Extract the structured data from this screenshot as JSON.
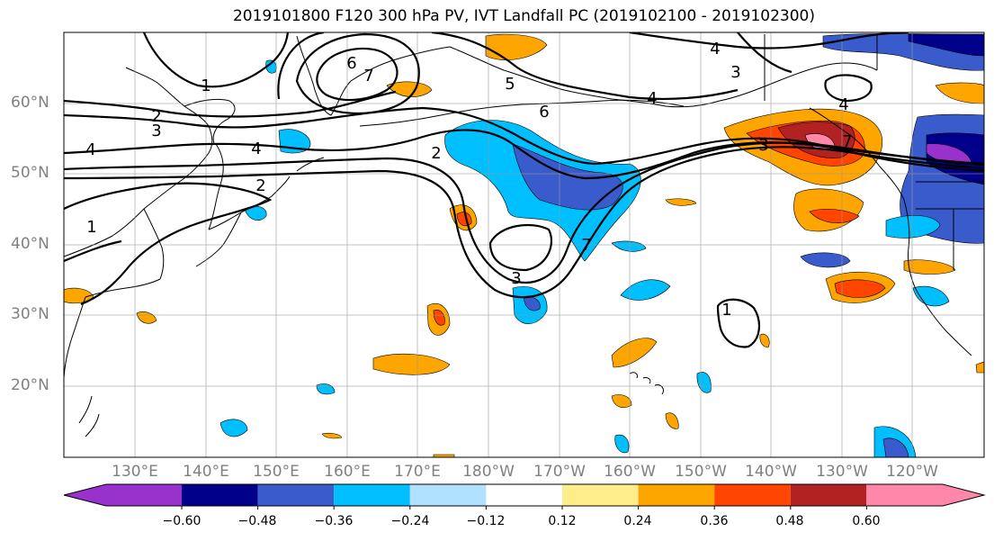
{
  "title": "2019101800 F120 300 hPa PV, IVT Landfall PC (2019102100 - 2019102300)",
  "lat_labels": [
    "60°N",
    "50°N",
    "40°N",
    "30°N",
    "20°N"
  ],
  "lon_labels": [
    "130°E",
    "140°E",
    "150°E",
    "160°E",
    "170°E",
    "180°W",
    "170°W",
    "160°W",
    "150°W",
    "140°W",
    "130°W",
    "120°W"
  ],
  "colorbar": {
    "colors": [
      "#9932CC",
      "#00008B",
      "#3A5BCB",
      "#00BFFF",
      "#B0E2FF",
      "#FFFFFF",
      "#FFEC8B",
      "#FFA500",
      "#FF4500",
      "#B22222",
      "#FF88AA"
    ],
    "tick_labels": [
      "−0.60",
      "−0.48",
      "−0.36",
      "−0.24",
      "−0.12",
      "0.12",
      "0.24",
      "0.36",
      "0.48",
      "0.60"
    ]
  },
  "contour_labels": [
    "1",
    "2",
    "3",
    "4",
    "5",
    "6",
    "7",
    "2",
    "4",
    "2",
    "1",
    "6",
    "3",
    "4",
    "4",
    "3",
    "3",
    "4",
    "1",
    "7",
    "7"
  ]
}
